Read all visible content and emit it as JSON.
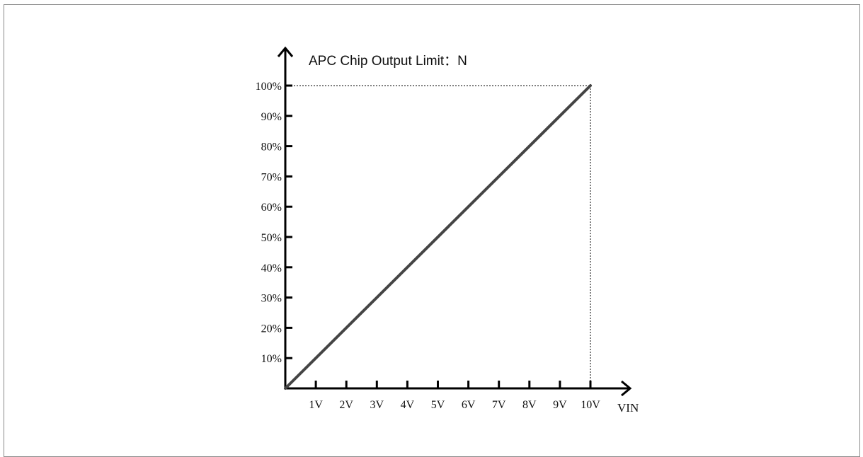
{
  "chart_data": {
    "type": "line",
    "title": "APC Chip  Output Limit：N",
    "xlabel": "VIN",
    "ylabel": "",
    "x_ticks": [
      "1V",
      "2V",
      "3V",
      "4V",
      "5V",
      "6V",
      "7V",
      "8V",
      "9V",
      "10V"
    ],
    "y_ticks": [
      "10%",
      "20%",
      "30%",
      "40%",
      "50%",
      "60%",
      "70%",
      "80%",
      "90%",
      "100%"
    ],
    "xlim": [
      0,
      10
    ],
    "ylim": [
      0,
      100
    ],
    "grid": false,
    "series": [
      {
        "x": [
          0,
          10
        ],
        "y": [
          0,
          100
        ]
      }
    ],
    "reference_lines": [
      {
        "orientation": "horizontal",
        "value": 100,
        "style": "dotted"
      },
      {
        "orientation": "vertical",
        "value": 10,
        "style": "dotted"
      }
    ],
    "colors": {
      "line": "#444444",
      "axis": "#000000"
    }
  }
}
